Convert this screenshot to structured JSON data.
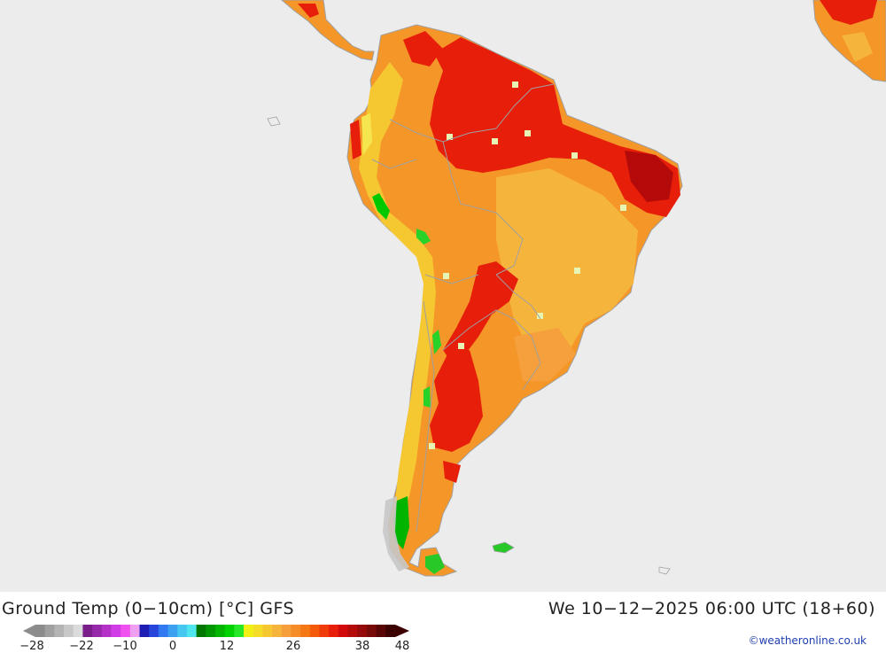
{
  "title": "Ground Temp (0−10cm) [°C] GFS",
  "datetime": "We 10−12−2025 06:00 UTC (18+60)",
  "credit": "©weatheronline.co.uk",
  "legend": {
    "ticks": [
      "−28",
      "−22",
      "−10",
      "0",
      "12",
      "26",
      "38",
      "48"
    ],
    "colors": [
      "#8c8c8c",
      "#a0a0a0",
      "#b4b4b4",
      "#c8c8c8",
      "#dcdcdc",
      "#7a1e8c",
      "#9628aa",
      "#b432c8",
      "#d23ce6",
      "#f050f0",
      "#f0a0f0",
      "#1e1eb4",
      "#2846dc",
      "#3278f0",
      "#3ca0f0",
      "#46c8f0",
      "#50e6f0",
      "#007800",
      "#009600",
      "#00b400",
      "#00d200",
      "#28e628",
      "#f0f014",
      "#f5dc28",
      "#f5c832",
      "#f5b43c",
      "#f5a03c",
      "#f58c28",
      "#f57814",
      "#f55a0a",
      "#f03c0a",
      "#e61e0a",
      "#d20a0a",
      "#b40a0a",
      "#960a0a",
      "#780a0a",
      "#5a0505",
      "#3c0000"
    ],
    "colors_meaning": "color ramp from -28 to 48 degrees C"
  },
  "map": {
    "colors": {
      "ocean": "#ececec",
      "border": "#a0a0a0",
      "land_cool": "#c8c8c8",
      "green": "#28c828",
      "yellow": "#f5e650",
      "light_orange": "#f5b43c",
      "orange": "#f59628",
      "dark_orange": "#f07814",
      "red": "#e61e0a",
      "dark_red": "#b40a0a",
      "pale_square": "#e6f5b4"
    }
  }
}
